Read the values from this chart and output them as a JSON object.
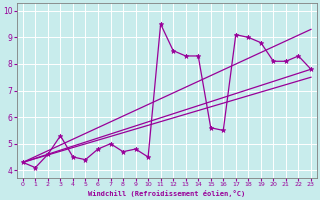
{
  "xlabel": "Windchill (Refroidissement éolien,°C)",
  "ylabel": "",
  "background_color": "#c8ecec",
  "line_color": "#990099",
  "xlim": [
    -0.5,
    23.5
  ],
  "ylim": [
    3.7,
    10.3
  ],
  "xticks": [
    0,
    1,
    2,
    3,
    4,
    5,
    6,
    7,
    8,
    9,
    10,
    11,
    12,
    13,
    14,
    15,
    16,
    17,
    18,
    19,
    20,
    21,
    22,
    23
  ],
  "yticks": [
    4,
    5,
    6,
    7,
    8,
    9,
    10
  ],
  "data_x": [
    0,
    1,
    2,
    3,
    4,
    5,
    6,
    7,
    8,
    9,
    10,
    11,
    12,
    13,
    14,
    15,
    16,
    17,
    18,
    19,
    20,
    21,
    22,
    23
  ],
  "data_y": [
    4.3,
    4.1,
    4.6,
    5.3,
    4.5,
    4.4,
    4.8,
    5.0,
    4.7,
    4.8,
    4.5,
    9.5,
    8.5,
    8.3,
    8.3,
    5.6,
    5.5,
    9.1,
    9.0,
    8.8,
    8.1,
    8.1,
    8.3,
    7.8
  ],
  "line1_x": [
    0,
    23
  ],
  "line1_y": [
    4.3,
    7.8
  ],
  "line2_x": [
    0,
    23
  ],
  "line2_y": [
    4.3,
    9.3
  ],
  "line3_x": [
    0,
    23
  ],
  "line3_y": [
    4.3,
    7.5
  ]
}
